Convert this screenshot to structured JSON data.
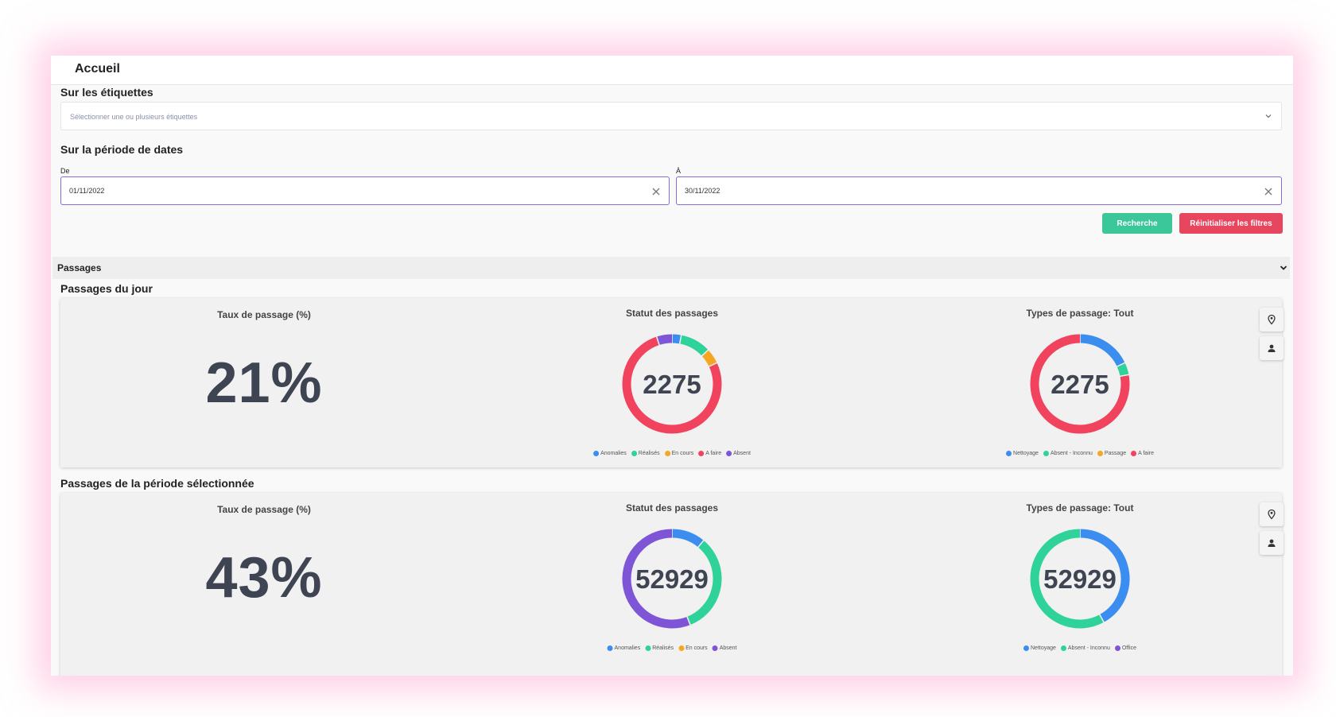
{
  "header": {
    "title": "Accueil"
  },
  "filters": {
    "tags_label": "Sur les étiquettes",
    "tags_placeholder": "Sélectionner une ou plusieurs étiquettes",
    "period_label": "Sur la période de dates",
    "from_label": "De",
    "from_value": "01/11/2022",
    "to_label": "À",
    "to_value": "30/11/2022",
    "search_label": "Recherche",
    "reset_label": "Réinitialiser les filtres"
  },
  "passages_section": {
    "label": "Passages"
  },
  "colors": {
    "blue": "#3b8ef0",
    "green": "#2fd39a",
    "orange": "#f5a623",
    "red": "#f2435e",
    "purple": "#7d55d6",
    "brand_green": "#3cc79b",
    "brand_red": "#e8455e"
  },
  "day": {
    "title": "Passages du jour",
    "rate_title": "Taux de passage (%)",
    "rate_value": "21%",
    "status_title": "Statut des passages",
    "status_total": "2275",
    "status_legend": [
      "Anomalies",
      "Réalisés",
      "En cours",
      "A faire",
      "Absent"
    ],
    "types_title": "Types de passage: Tout",
    "types_total": "2275",
    "types_legend": [
      "Nettoyage",
      "Absent - Inconnu",
      "Passage",
      "A faire"
    ]
  },
  "period": {
    "title": "Passages de la période sélectionnée",
    "rate_title": "Taux de passage (%)",
    "rate_value": "43%",
    "status_title": "Statut des passages",
    "status_total": "52929",
    "status_legend": [
      "Anomalies",
      "Réalisés",
      "En cours",
      "Absent"
    ],
    "types_title": "Types de passage: Tout",
    "types_total": "52929",
    "types_legend": [
      "Nettoyage",
      "Absent - Inconnu",
      "Office"
    ]
  },
  "chart_data": [
    {
      "type": "pie",
      "categories": [
        "Anomalies",
        "Réalisés",
        "En cours",
        "A faire",
        "Absent"
      ],
      "values": [
        3,
        10,
        5,
        77,
        5
      ],
      "colors": [
        "#3b8ef0",
        "#2fd39a",
        "#f5a623",
        "#f2435e",
        "#7d55d6"
      ],
      "center_label": "2275"
    },
    {
      "type": "pie",
      "categories": [
        "Nettoyage",
        "Absent - Inconnu",
        "Passage",
        "A faire"
      ],
      "values": [
        18,
        4,
        0,
        78
      ],
      "colors": [
        "#3b8ef0",
        "#2fd39a",
        "#f5a623",
        "#f2435e"
      ],
      "center_label": "2275"
    },
    {
      "type": "pie",
      "categories": [
        "Anomalies",
        "Réalisés",
        "En cours",
        "Absent"
      ],
      "values": [
        11,
        33,
        0,
        56
      ],
      "colors": [
        "#3b8ef0",
        "#2fd39a",
        "#f5a623",
        "#7d55d6"
      ],
      "center_label": "52929"
    },
    {
      "type": "pie",
      "categories": [
        "Nettoyage",
        "Absent - Inconnu",
        "Office"
      ],
      "values": [
        42,
        58,
        0
      ],
      "colors": [
        "#3b8ef0",
        "#2fd39a",
        "#7d55d6"
      ],
      "center_label": "52929"
    }
  ]
}
